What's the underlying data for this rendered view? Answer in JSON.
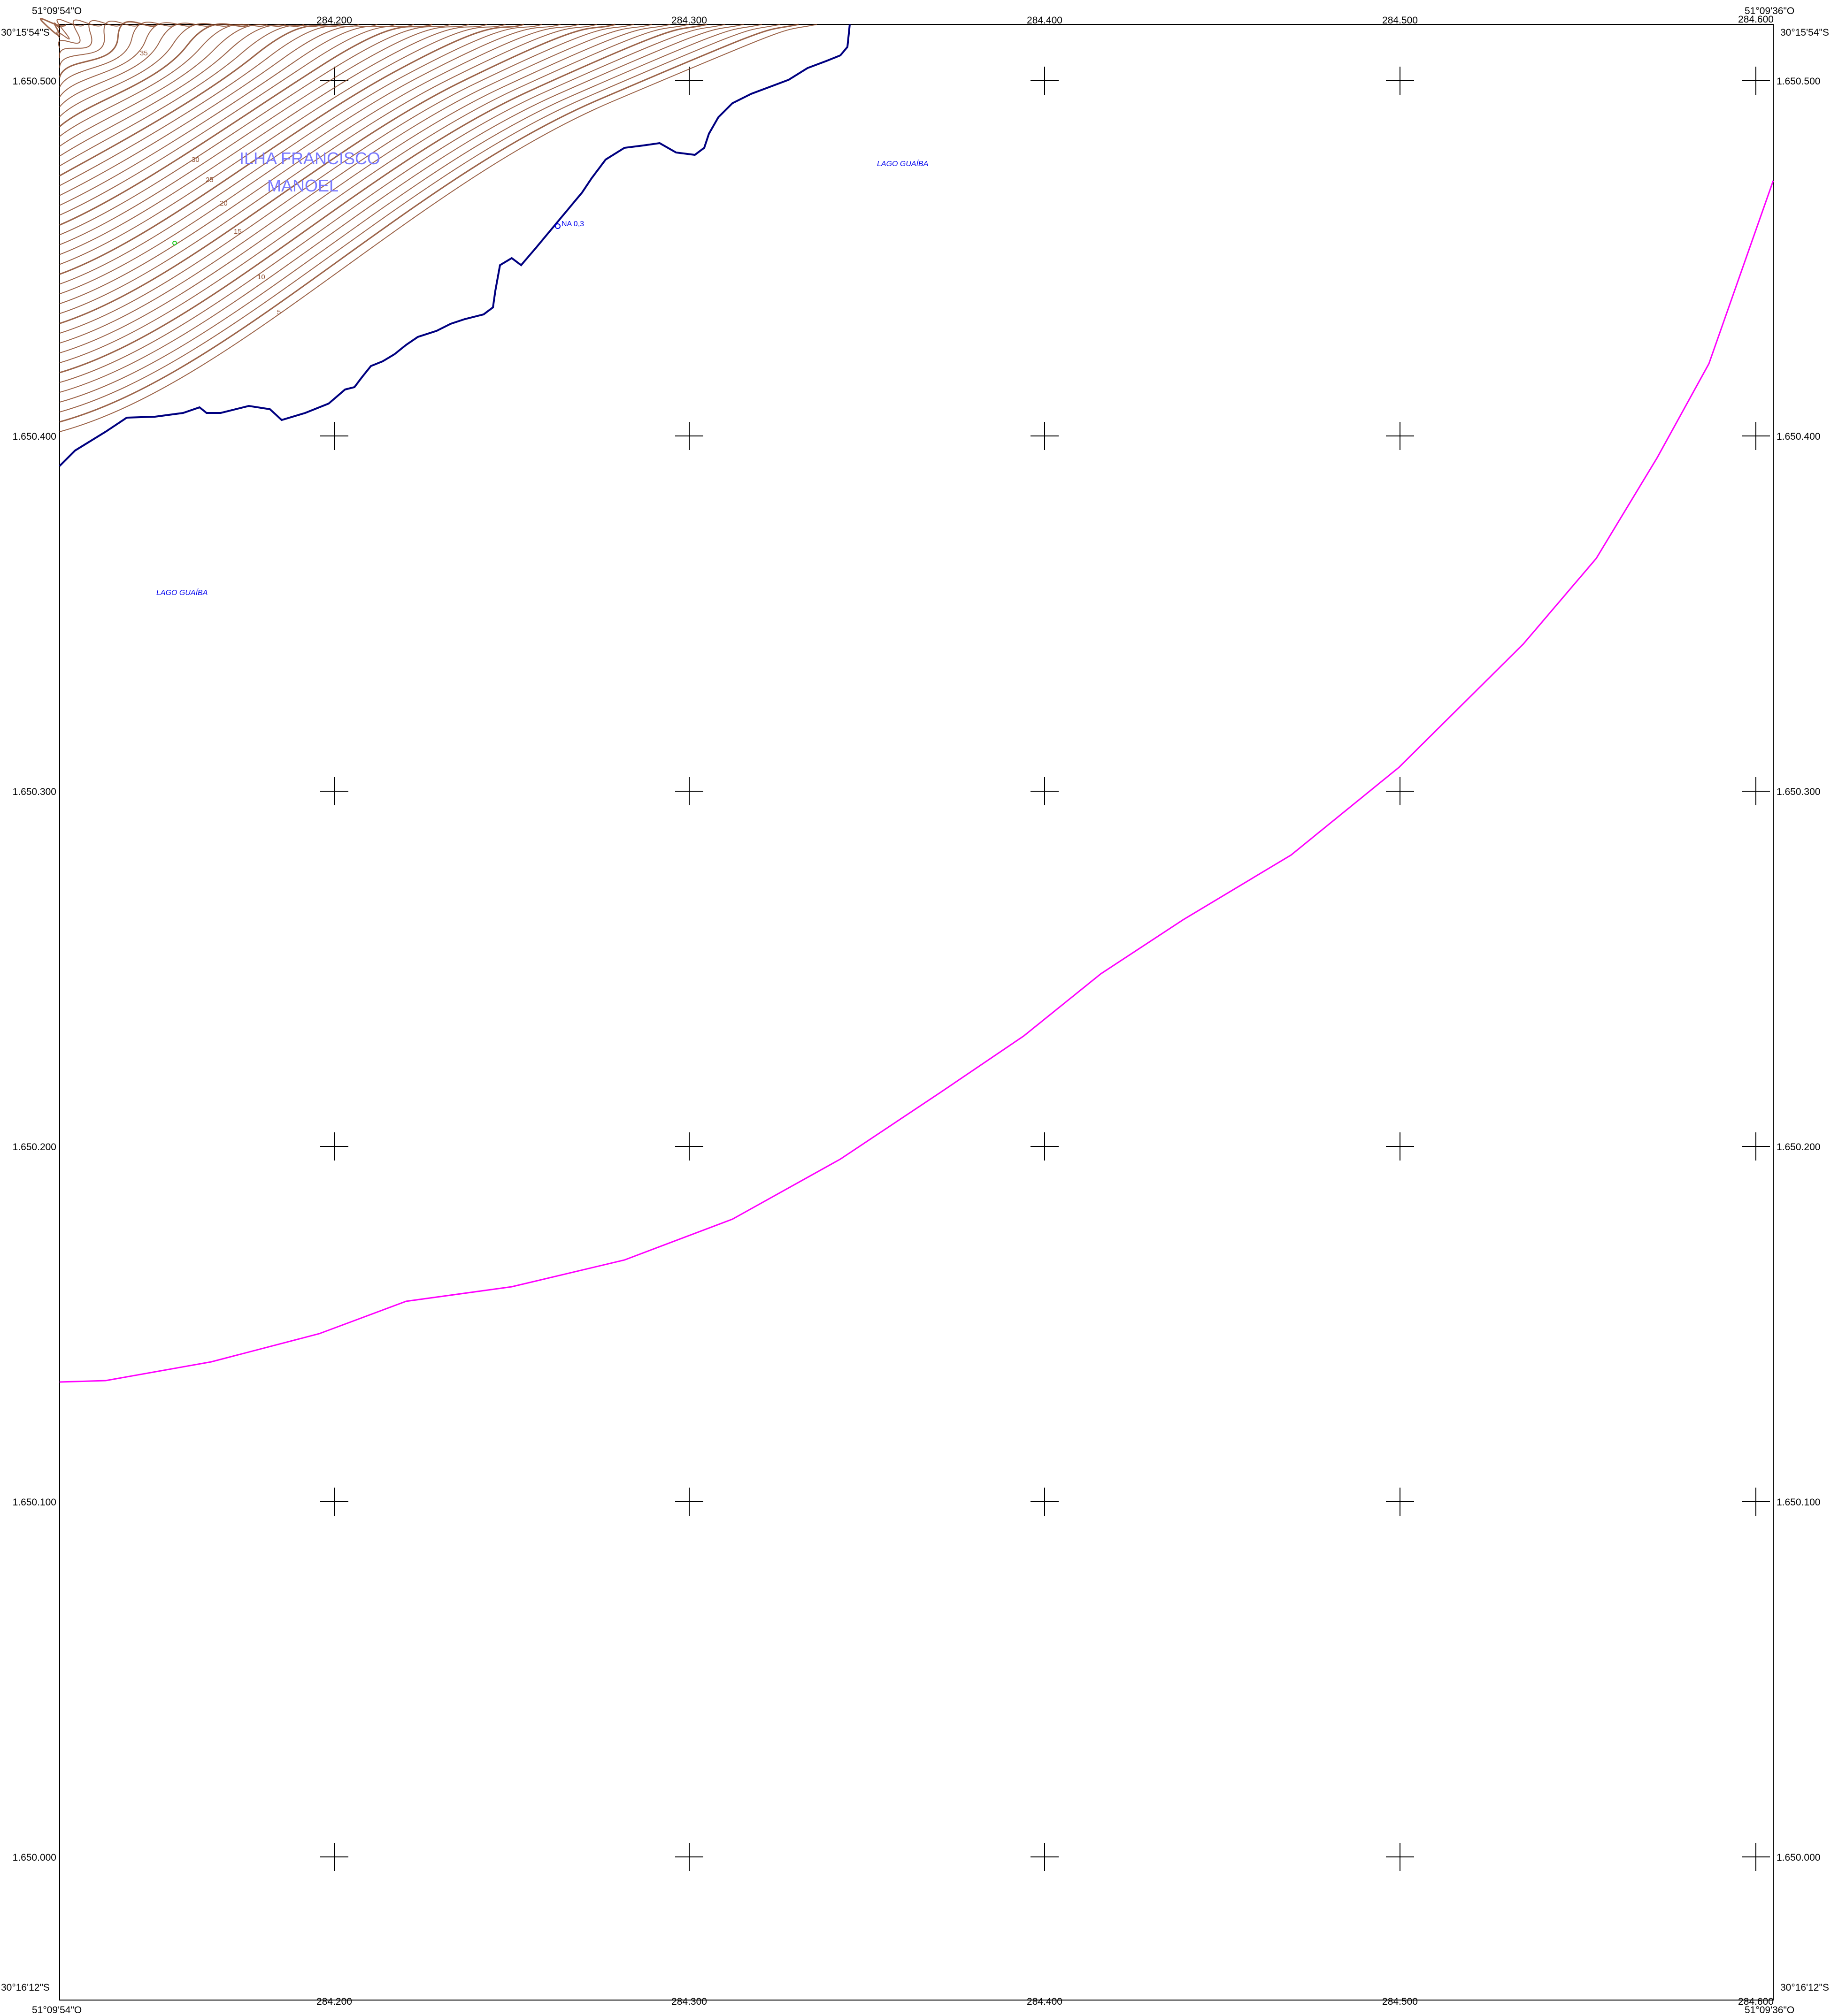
{
  "map": {
    "corners": {
      "top_left_lon": "51°09'54\"O",
      "top_left_lat": "30°15'54\"S",
      "top_right_lon": "51°09'36\"O",
      "top_right_lat": "30°15'54\"S",
      "bottom_left_lon": "51°09'54\"O",
      "bottom_left_lat": "30°16'12\"S",
      "bottom_right_lon": "51°09'36\"O",
      "bottom_right_lat": "30°16'12\"S"
    },
    "eastings": [
      "284.200",
      "284.300",
      "284.400",
      "284.500",
      "284.600"
    ],
    "northings": [
      "1.650.500",
      "1.650.400",
      "1.650.300",
      "1.650.200",
      "1.650.100",
      "1.650.000"
    ],
    "labels": {
      "island_line1": "ILHA FRANCISCO",
      "island_line2": "MANOEL",
      "lake_north": "LAGO GUAÍBA",
      "lake_west": "LAGO GUAÍBA",
      "water_level": "NA 0,3"
    },
    "contour_labels": [
      "35",
      "30",
      "25",
      "20",
      "15",
      "10",
      "5"
    ],
    "colors": {
      "frame": "#000000",
      "contour": "#8b4a2b",
      "shoreline": "#000080",
      "route_line": "#ff00ff",
      "label_blue": "#0000ee",
      "island_label": "#7a7aff"
    }
  }
}
